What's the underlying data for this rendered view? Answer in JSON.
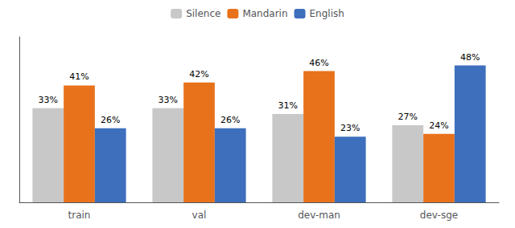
{
  "chart_data": {
    "type": "bar",
    "categories": [
      "train",
      "val",
      "dev-man",
      "dev-sge"
    ],
    "series": [
      {
        "name": "Silence",
        "color": "#c8c8c8",
        "values": [
          33,
          33,
          31,
          27
        ],
        "value_labels": [
          "33%",
          "33%",
          "31%",
          "27%"
        ]
      },
      {
        "name": "Mandarin",
        "color": "#e8721c",
        "values": [
          41,
          42,
          46,
          24
        ],
        "value_labels": [
          "41%",
          "42%",
          "46%",
          "24%"
        ]
      },
      {
        "name": "English",
        "color": "#3d6fbd",
        "values": [
          26,
          26,
          23,
          48
        ],
        "value_labels": [
          "26%",
          "26%",
          "23%",
          "48%"
        ]
      }
    ],
    "ylim": [
      0,
      58
    ],
    "grid": false,
    "legend": "top",
    "data_labels": true,
    "tick_labels": "x"
  }
}
